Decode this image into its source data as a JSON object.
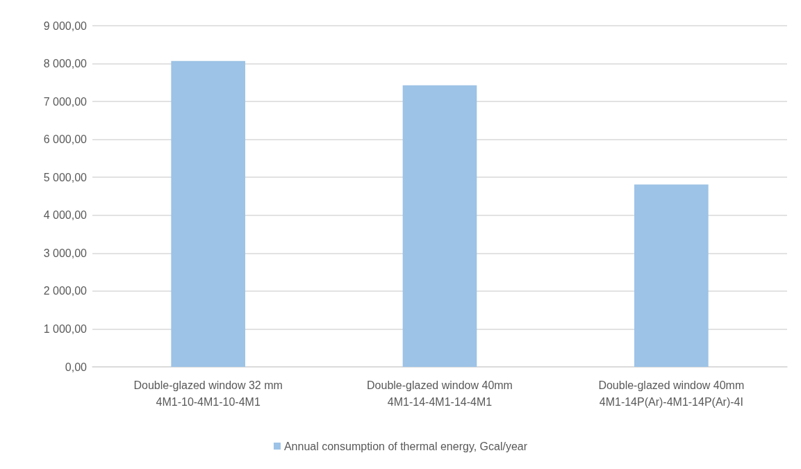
{
  "chart_data": {
    "type": "bar",
    "categories": [
      "Double-glazed window 32 mm\n4M1-10-4M1-10-4M1",
      "Double-glazed window 40mm\n4M1-14-4M1-14-4M1",
      "Double-glazed window 40mm\n4M1-14P(Ar)-4M1-14P(Ar)-4I"
    ],
    "series": [
      {
        "name": "Annual consumption of thermal energy, Gcal/year",
        "color": "#9dc3e6",
        "values": [
          8070,
          7430,
          4810
        ]
      }
    ],
    "ylim": [
      0,
      9000
    ],
    "yticks": [
      {
        "value": 0,
        "label": "0,00"
      },
      {
        "value": 1000,
        "label": "1 000,00"
      },
      {
        "value": 2000,
        "label": "2 000,00"
      },
      {
        "value": 3000,
        "label": "3 000,00"
      },
      {
        "value": 4000,
        "label": "4 000,00"
      },
      {
        "value": 5000,
        "label": "5 000,00"
      },
      {
        "value": 6000,
        "label": "6 000,00"
      },
      {
        "value": 7000,
        "label": "7 000,00"
      },
      {
        "value": 8000,
        "label": "8 000,00"
      },
      {
        "value": 9000,
        "label": "9 000,00"
      }
    ],
    "grid": "y",
    "legend": "bottom"
  }
}
